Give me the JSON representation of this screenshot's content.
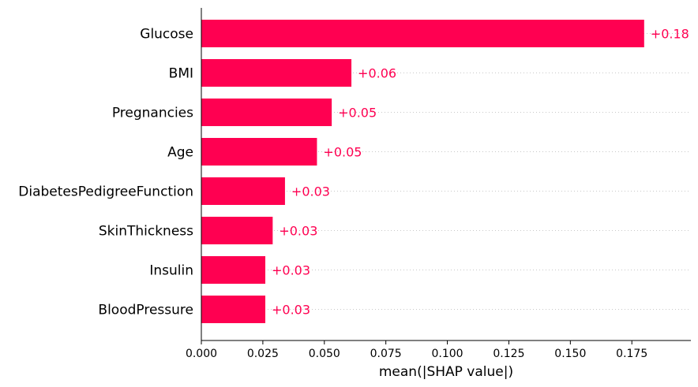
{
  "chart_data": {
    "type": "bar",
    "orientation": "horizontal",
    "categories": [
      "Glucose",
      "BMI",
      "Pregnancies",
      "Age",
      "DiabetesPedigreeFunction",
      "SkinThickness",
      "Insulin",
      "BloodPressure"
    ],
    "values": [
      0.18,
      0.061,
      0.053,
      0.047,
      0.034,
      0.029,
      0.026,
      0.026
    ],
    "value_labels": [
      "+0.18",
      "+0.06",
      "+0.05",
      "+0.05",
      "+0.03",
      "+0.03",
      "+0.03",
      "+0.03"
    ],
    "xlabel": "mean(|SHAP value|)",
    "xlim": [
      0,
      0.199
    ],
    "xticks": [
      0.0,
      0.025,
      0.05,
      0.075,
      0.1,
      0.125,
      0.15,
      0.175
    ],
    "xtick_labels": [
      "0.000",
      "0.025",
      "0.050",
      "0.075",
      "0.100",
      "0.125",
      "0.150",
      "0.175"
    ],
    "grid": "dotted horizontal per row",
    "bar_color": "#ff0051",
    "label_color": "#ff0051"
  }
}
